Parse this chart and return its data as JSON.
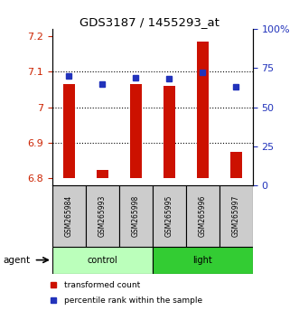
{
  "title": "GDS3187 / 1455293_at",
  "samples": [
    "GSM265984",
    "GSM265993",
    "GSM265998",
    "GSM265995",
    "GSM265996",
    "GSM265997"
  ],
  "red_values": [
    7.065,
    6.825,
    7.065,
    7.06,
    7.185,
    6.875
  ],
  "blue_values": [
    70,
    65,
    69,
    68,
    72,
    63
  ],
  "ylim_left": [
    6.78,
    7.22
  ],
  "ylim_right": [
    0,
    100
  ],
  "yticks_left": [
    6.8,
    6.9,
    7.0,
    7.1,
    7.2
  ],
  "ytick_labels_left": [
    "6.8",
    "6.9",
    "7",
    "7.1",
    "7.2"
  ],
  "yticks_right": [
    0,
    25,
    50,
    75,
    100
  ],
  "ytick_labels_right": [
    "0",
    "25",
    "50",
    "75",
    "100%"
  ],
  "bar_bottom": 6.8,
  "bar_color": "#cc1100",
  "dot_color": "#2233bb",
  "control_color": "#bbffbb",
  "light_color": "#33cc33",
  "gray_box_color": "#cccccc",
  "grid_color": "black",
  "left_tick_color": "#cc2200",
  "right_tick_color": "#2233bb",
  "bar_width": 0.35,
  "agent_label": "agent",
  "legend_red": "transformed count",
  "legend_blue": "percentile rank within the sample",
  "figsize": [
    3.31,
    3.54
  ],
  "dpi": 100
}
